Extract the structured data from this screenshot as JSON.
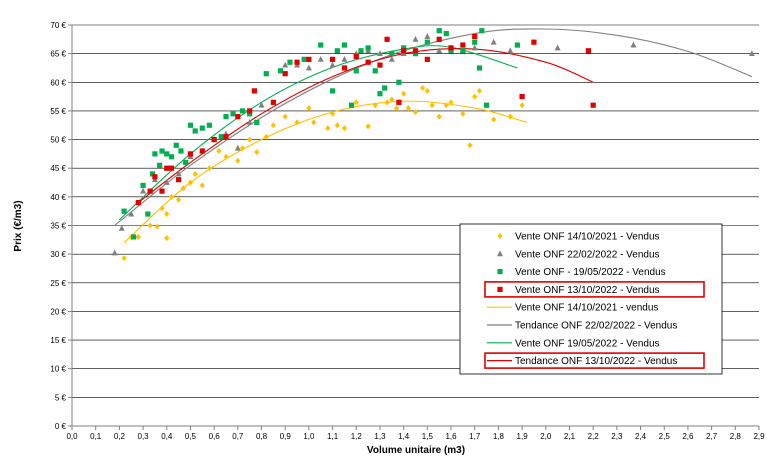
{
  "chart_data": {
    "type": "scatter",
    "xlabel": "Volume unitaire (m3)",
    "ylabel": "Prix (€/m3)",
    "xlim": [
      0,
      2.9
    ],
    "ylim": [
      0,
      70
    ],
    "x_tick_labels": [
      "0,0",
      "0,1",
      "0,2",
      "0,3",
      "0,4",
      "0,5",
      "0,6",
      "0,7",
      "0,8",
      "0,9",
      "1,0",
      "1,1",
      "1,2",
      "1,3",
      "1,4",
      "1,5",
      "1,6",
      "1,7",
      "1,8",
      "1,9",
      "2,0",
      "2,1",
      "2,2",
      "2,3",
      "2,4",
      "2,5",
      "2,6",
      "2,7",
      "2,8",
      "2,9"
    ],
    "y_tick_labels": [
      "0 €",
      "5 €",
      "10 €",
      "15 €",
      "20 €",
      "25 €",
      "30 €",
      "35 €",
      "40 €",
      "45 €",
      "50 €",
      "55 €",
      "60 €",
      "65 €",
      "70 €"
    ],
    "grid": "horizontal",
    "legend_position": "bottom-right",
    "series": [
      {
        "name": "Vente ONF 14/10/2021 - Vendus",
        "kind": "points",
        "marker": "diamond",
        "color": "#FFC000",
        "points": [
          [
            0.22,
            29.3
          ],
          [
            0.25,
            33
          ],
          [
            0.28,
            33
          ],
          [
            0.33,
            35
          ],
          [
            0.36,
            34.8
          ],
          [
            0.38,
            38
          ],
          [
            0.4,
            37
          ],
          [
            0.4,
            32.8
          ],
          [
            0.42,
            40
          ],
          [
            0.45,
            39.5
          ],
          [
            0.47,
            41.5
          ],
          [
            0.5,
            42.5
          ],
          [
            0.52,
            44
          ],
          [
            0.55,
            42
          ],
          [
            0.58,
            45
          ],
          [
            0.62,
            48
          ],
          [
            0.65,
            47
          ],
          [
            0.7,
            46.3
          ],
          [
            0.72,
            48.5
          ],
          [
            0.75,
            50
          ],
          [
            0.78,
            47.8
          ],
          [
            0.82,
            50.5
          ],
          [
            0.85,
            52.5
          ],
          [
            0.9,
            54
          ],
          [
            0.95,
            53
          ],
          [
            1.0,
            55.5
          ],
          [
            1.02,
            53
          ],
          [
            1.08,
            52
          ],
          [
            1.1,
            54.5
          ],
          [
            1.12,
            52.5
          ],
          [
            1.15,
            52
          ],
          [
            1.2,
            56.5
          ],
          [
            1.25,
            52.3
          ],
          [
            1.28,
            56
          ],
          [
            1.3,
            58
          ],
          [
            1.33,
            56.5
          ],
          [
            1.35,
            57
          ],
          [
            1.37,
            55.5
          ],
          [
            1.4,
            58
          ],
          [
            1.42,
            55.5
          ],
          [
            1.45,
            54.8
          ],
          [
            1.48,
            59
          ],
          [
            1.5,
            58.5
          ],
          [
            1.52,
            56
          ],
          [
            1.55,
            54
          ],
          [
            1.58,
            56
          ],
          [
            1.6,
            56.5
          ],
          [
            1.65,
            54.5
          ],
          [
            1.68,
            49
          ],
          [
            1.7,
            57.5
          ],
          [
            1.72,
            58.5
          ],
          [
            1.75,
            56
          ],
          [
            1.78,
            53.5
          ],
          [
            1.85,
            54
          ],
          [
            1.9,
            56
          ]
        ]
      },
      {
        "name": "Vente ONF 22/02/2022 - Vendus",
        "kind": "points",
        "marker": "triangle",
        "color": "#808080",
        "points": [
          [
            0.18,
            30.2
          ],
          [
            0.21,
            34.5
          ],
          [
            0.25,
            37
          ],
          [
            0.3,
            41
          ],
          [
            0.35,
            43
          ],
          [
            0.4,
            42.5
          ],
          [
            0.45,
            44
          ],
          [
            0.5,
            47
          ],
          [
            0.55,
            48
          ],
          [
            0.6,
            50
          ],
          [
            0.65,
            51
          ],
          [
            0.7,
            48.5
          ],
          [
            0.75,
            53
          ],
          [
            0.8,
            56
          ],
          [
            0.9,
            63
          ],
          [
            0.95,
            63
          ],
          [
            1.0,
            62.5
          ],
          [
            1.05,
            64
          ],
          [
            1.1,
            63
          ],
          [
            1.15,
            64
          ],
          [
            1.2,
            65
          ],
          [
            1.25,
            65.5
          ],
          [
            1.3,
            65
          ],
          [
            1.35,
            64
          ],
          [
            1.4,
            65
          ],
          [
            1.45,
            67.5
          ],
          [
            1.5,
            68
          ],
          [
            1.55,
            65.5
          ],
          [
            1.6,
            66
          ],
          [
            1.65,
            65.5
          ],
          [
            1.7,
            66
          ],
          [
            1.78,
            67
          ],
          [
            1.85,
            65.5
          ],
          [
            2.05,
            66
          ],
          [
            2.37,
            66.5
          ],
          [
            2.87,
            65
          ]
        ]
      },
      {
        "name": "Vente ONF - 19/05/2022 - Vendus",
        "kind": "points",
        "marker": "square",
        "color": "#00B050",
        "points": [
          [
            0.22,
            37.5
          ],
          [
            0.26,
            33
          ],
          [
            0.3,
            42
          ],
          [
            0.32,
            37
          ],
          [
            0.34,
            44
          ],
          [
            0.35,
            47.5
          ],
          [
            0.37,
            45.5
          ],
          [
            0.38,
            48
          ],
          [
            0.4,
            47.5
          ],
          [
            0.42,
            47
          ],
          [
            0.44,
            49
          ],
          [
            0.46,
            48
          ],
          [
            0.48,
            46
          ],
          [
            0.5,
            52.5
          ],
          [
            0.52,
            51.5
          ],
          [
            0.55,
            52
          ],
          [
            0.58,
            52.5
          ],
          [
            0.6,
            50
          ],
          [
            0.63,
            50.5
          ],
          [
            0.65,
            54
          ],
          [
            0.68,
            54.5
          ],
          [
            0.72,
            55
          ],
          [
            0.75,
            54.5
          ],
          [
            0.78,
            53
          ],
          [
            0.82,
            61.5
          ],
          [
            0.88,
            62
          ],
          [
            0.92,
            63.5
          ],
          [
            0.98,
            64
          ],
          [
            1.05,
            66.5
          ],
          [
            1.1,
            58.5
          ],
          [
            1.12,
            65.5
          ],
          [
            1.15,
            66.5
          ],
          [
            1.18,
            56
          ],
          [
            1.2,
            62
          ],
          [
            1.22,
            65.5
          ],
          [
            1.25,
            66
          ],
          [
            1.28,
            62
          ],
          [
            1.3,
            58
          ],
          [
            1.32,
            59
          ],
          [
            1.35,
            65
          ],
          [
            1.38,
            60
          ],
          [
            1.4,
            66
          ],
          [
            1.45,
            65
          ],
          [
            1.5,
            67
          ],
          [
            1.55,
            69
          ],
          [
            1.58,
            68.5
          ],
          [
            1.6,
            65.5
          ],
          [
            1.65,
            65.5
          ],
          [
            1.7,
            67
          ],
          [
            1.72,
            62.5
          ],
          [
            1.73,
            69
          ],
          [
            1.75,
            56
          ],
          [
            1.88,
            66.5
          ]
        ]
      },
      {
        "name": "Vente ONF 13/10/2022 - Vendus",
        "kind": "points",
        "marker": "square",
        "color": "#E00000",
        "points": [
          [
            0.28,
            39
          ],
          [
            0.33,
            41
          ],
          [
            0.35,
            43.5
          ],
          [
            0.38,
            41
          ],
          [
            0.4,
            45
          ],
          [
            0.42,
            45
          ],
          [
            0.45,
            43
          ],
          [
            0.5,
            47.5
          ],
          [
            0.55,
            48
          ],
          [
            0.6,
            50
          ],
          [
            0.65,
            50.5
          ],
          [
            0.7,
            54
          ],
          [
            0.75,
            55
          ],
          [
            0.77,
            58.5
          ],
          [
            0.85,
            56.5
          ],
          [
            0.9,
            61.5
          ],
          [
            0.95,
            63.5
          ],
          [
            1.0,
            64
          ],
          [
            1.1,
            64
          ],
          [
            1.15,
            62.5
          ],
          [
            1.2,
            64.5
          ],
          [
            1.25,
            63.5
          ],
          [
            1.3,
            63
          ],
          [
            1.33,
            67.5
          ],
          [
            1.38,
            56.5
          ],
          [
            1.4,
            65.5
          ],
          [
            1.45,
            65.5
          ],
          [
            1.5,
            64
          ],
          [
            1.55,
            67.5
          ],
          [
            1.6,
            66
          ],
          [
            1.65,
            66.5
          ],
          [
            1.7,
            68
          ],
          [
            1.9,
            57.5
          ],
          [
            1.95,
            67
          ],
          [
            2.18,
            65.5
          ],
          [
            2.2,
            56
          ]
        ]
      },
      {
        "name": "Vente ONF 14/10/2021 - vendus",
        "kind": "trend",
        "color": "#FFC000",
        "x": [
          0.22,
          0.5,
          0.8,
          1.1,
          1.4,
          1.7,
          1.92
        ],
        "y": [
          32,
          42.5,
          50,
          54.8,
          56.7,
          55.5,
          53
        ]
      },
      {
        "name": "Tendance ONF 22/02/2022 - Vendus",
        "kind": "trend",
        "color": "#808080",
        "x": [
          0.18,
          0.5,
          0.9,
          1.3,
          1.7,
          2.0,
          2.3,
          2.6,
          2.87
        ],
        "y": [
          35,
          45.5,
          56.3,
          64.1,
          68.5,
          69.3,
          68.2,
          65.4,
          61
        ]
      },
      {
        "name": "Vente ONF 19/05/2022 - Vendus",
        "kind": "trend",
        "color": "#00B050",
        "x": [
          0.2,
          0.5,
          0.8,
          1.1,
          1.4,
          1.6,
          1.88
        ],
        "y": [
          36,
          47.5,
          56.5,
          62.6,
          65.8,
          66.1,
          62.5
        ]
      },
      {
        "name": "Tendance ONF 13/10/2022 - Vendus",
        "kind": "trend",
        "color": "#E00000",
        "x": [
          0.28,
          0.5,
          0.8,
          1.1,
          1.4,
          1.7,
          2.0,
          2.2
        ],
        "y": [
          39,
          46,
          54.5,
          61,
          65,
          65.8,
          63.5,
          60
        ]
      }
    ],
    "legend": [
      {
        "label": "Vente ONF 14/10/2021 - Vendus",
        "symbol": "diamond",
        "color": "#FFC000",
        "highlight": false
      },
      {
        "label": "Vente ONF 22/02/2022 - Vendus",
        "symbol": "triangle",
        "color": "#808080",
        "highlight": false
      },
      {
        "label": "Vente ONF - 19/05/2022 - Vendus",
        "symbol": "square",
        "color": "#00B050",
        "highlight": false
      },
      {
        "label": "Vente ONF 13/10/2022 - Vendus",
        "symbol": "square",
        "color": "#E00000",
        "highlight": true
      },
      {
        "label": "Vente ONF 14/10/2021 - vendus",
        "symbol": "line",
        "color": "#FFC000",
        "highlight": false
      },
      {
        "label": "Tendance ONF 22/02/2022 - Vendus",
        "symbol": "line",
        "color": "#808080",
        "highlight": false
      },
      {
        "label": "Vente ONF 19/05/2022 - Vendus",
        "symbol": "line",
        "color": "#00B050",
        "highlight": false
      },
      {
        "label": "Tendance ONF 13/10/2022 - Vendus",
        "symbol": "line",
        "color": "#E00000",
        "highlight": true
      }
    ],
    "highlight_color": "#E00000"
  }
}
